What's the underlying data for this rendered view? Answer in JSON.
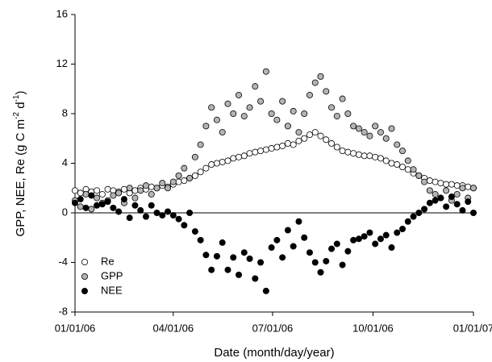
{
  "chart_data": {
    "type": "scatter",
    "x_label": "Date (month/day/year)",
    "y_label_parts": [
      "GPP, NEE, Re (g C m",
      "-2",
      " d",
      "-1",
      ")"
    ],
    "x": [
      0,
      5,
      10,
      15,
      20,
      25,
      30,
      35,
      40,
      45,
      50,
      55,
      60,
      65,
      70,
      75,
      80,
      85,
      90,
      95,
      100,
      105,
      110,
      115,
      120,
      125,
      130,
      135,
      140,
      145,
      150,
      155,
      160,
      165,
      170,
      175,
      180,
      185,
      190,
      195,
      200,
      205,
      210,
      215,
      220,
      225,
      230,
      235,
      240,
      245,
      250,
      255,
      260,
      265,
      270,
      275,
      280,
      285,
      290,
      295,
      300,
      305,
      310,
      315,
      320,
      325,
      330,
      335,
      340,
      345,
      350,
      355,
      360,
      365
    ],
    "series": [
      {
        "name": "Re",
        "color": "#ffffff",
        "values": [
          1.8,
          1.6,
          1.9,
          1.7,
          1.8,
          1.5,
          1.9,
          1.8,
          1.7,
          1.9,
          1.6,
          1.8,
          2.0,
          1.9,
          2.1,
          2.0,
          2.2,
          2.1,
          2.3,
          2.5,
          2.6,
          2.8,
          3.0,
          3.3,
          3.6,
          3.9,
          4.0,
          4.1,
          4.2,
          4.4,
          4.5,
          4.6,
          4.8,
          4.9,
          5.0,
          5.1,
          5.2,
          5.3,
          5.4,
          5.6,
          5.5,
          5.8,
          6.0,
          6.3,
          6.5,
          6.2,
          5.9,
          5.6,
          5.3,
          5.0,
          4.9,
          4.8,
          4.7,
          4.6,
          4.6,
          4.5,
          4.4,
          4.2,
          4.0,
          3.9,
          3.7,
          3.5,
          3.2,
          3.0,
          2.8,
          2.6,
          2.5,
          2.4,
          2.3,
          2.3,
          2.2,
          2.2,
          2.1,
          2.0
        ]
      },
      {
        "name": "GPP",
        "color": "#b4b4b4",
        "values": [
          1.0,
          0.5,
          1.5,
          0.3,
          1.2,
          0.8,
          1.0,
          1.4,
          1.6,
          0.8,
          2.0,
          1.2,
          1.8,
          2.2,
          1.5,
          2.0,
          2.4,
          2.0,
          2.5,
          3.0,
          3.6,
          2.8,
          4.5,
          5.5,
          7.0,
          8.5,
          7.5,
          6.5,
          8.8,
          8.0,
          9.5,
          7.8,
          8.5,
          10.2,
          9.0,
          11.4,
          8.0,
          7.5,
          9.0,
          7.0,
          8.2,
          6.5,
          8.0,
          9.5,
          10.5,
          11.0,
          9.8,
          8.5,
          7.8,
          9.2,
          8.0,
          7.0,
          6.8,
          6.5,
          6.2,
          7.0,
          6.5,
          6.0,
          6.8,
          5.5,
          5.0,
          4.2,
          3.5,
          3.0,
          2.5,
          1.8,
          1.5,
          1.2,
          1.8,
          1.0,
          1.5,
          2.0,
          1.2,
          2.0
        ]
      },
      {
        "name": "NEE",
        "color": "#000000",
        "values": [
          0.8,
          1.1,
          0.4,
          1.4,
          0.6,
          0.7,
          0.9,
          0.4,
          0.1,
          1.1,
          -0.4,
          0.6,
          0.2,
          -0.3,
          0.6,
          0.0,
          -0.2,
          0.1,
          -0.2,
          -0.5,
          -1.0,
          0.0,
          -1.5,
          -2.2,
          -3.4,
          -4.6,
          -3.5,
          -2.4,
          -4.6,
          -3.6,
          -5.0,
          -3.2,
          -3.7,
          -5.3,
          -4.0,
          -6.3,
          -2.8,
          -2.2,
          -3.6,
          -1.4,
          -2.7,
          -0.7,
          -2.0,
          -3.2,
          -4.0,
          -4.8,
          -3.9,
          -2.9,
          -2.5,
          -4.2,
          -3.1,
          -2.2,
          -2.1,
          -1.9,
          -1.6,
          -2.5,
          -2.1,
          -1.8,
          -2.8,
          -1.6,
          -1.3,
          -0.7,
          -0.3,
          0.0,
          0.3,
          0.8,
          1.0,
          1.2,
          0.5,
          1.3,
          0.7,
          0.2,
          0.9,
          0.0
        ]
      }
    ],
    "xlim": [
      0,
      365
    ],
    "xticks": [
      {
        "value": 0,
        "label": "01/01/06"
      },
      {
        "value": 90,
        "label": "04/01/06"
      },
      {
        "value": 181,
        "label": "07/01/06"
      },
      {
        "value": 273,
        "label": "10/01/06"
      },
      {
        "value": 365,
        "label": "01/01/07"
      }
    ],
    "ylim": [
      -8,
      16
    ],
    "yticks": [
      -8,
      -4,
      0,
      4,
      8,
      12,
      16
    ],
    "zero_line": true,
    "legend": "lower left"
  }
}
